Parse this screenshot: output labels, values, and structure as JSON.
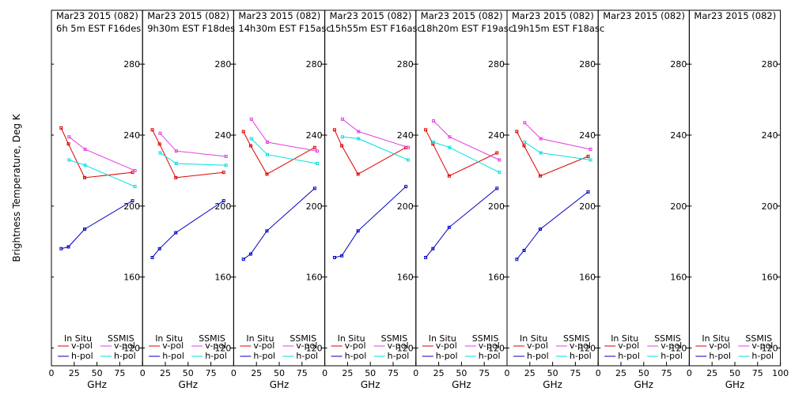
{
  "chart_data": {
    "type": "line",
    "ylabel": "Brightness Temperature, Deg K",
    "xlabel": "GHz",
    "ylim": [
      110,
      297
    ],
    "xlim": [
      0,
      100
    ],
    "yticks": [
      120,
      160,
      200,
      240,
      280
    ],
    "xticks": [
      0,
      25,
      50,
      75
    ],
    "xticks_last_panel": [
      0,
      25,
      50,
      75,
      100
    ],
    "grid": false,
    "colors": {
      "insitu_vpol": "#e00000",
      "insitu_hpol": "#0000c0",
      "ssmis_vpol": "#e040e0",
      "ssmis_hpol": "#00e0e0"
    },
    "legend": {
      "insitu_header": "In Situ",
      "ssmis_header": "SSMIS",
      "vpol": "v-pol",
      "hpol": "h-pol"
    },
    "panels": [
      {
        "title1": "Mar23 2015 (082)",
        "title2": "6h 5m  EST F16des",
        "series": [
          {
            "key": "insitu_vpol",
            "x": [
              10.7,
              18.7,
              36.5,
              89
            ],
            "y": [
              244,
              235,
              216,
              219
            ]
          },
          {
            "key": "insitu_hpol",
            "x": [
              10.7,
              18.7,
              36.5,
              89
            ],
            "y": [
              176,
              177,
              187,
              203
            ]
          },
          {
            "key": "ssmis_vpol",
            "x": [
              19.35,
              37,
              91.655
            ],
            "y": [
              239,
              232,
              220
            ]
          },
          {
            "key": "ssmis_hpol",
            "x": [
              19.35,
              37,
              91.655
            ],
            "y": [
              226,
              223,
              211
            ]
          }
        ]
      },
      {
        "title1": "Mar23 2015 (082)",
        "title2": "9h30m  EST F18des",
        "series": [
          {
            "key": "insitu_vpol",
            "x": [
              10.7,
              18.7,
              36.5,
              89
            ],
            "y": [
              243,
              235,
              216,
              219
            ]
          },
          {
            "key": "insitu_hpol",
            "x": [
              10.7,
              18.7,
              36.5,
              89
            ],
            "y": [
              171,
              176,
              185,
              203
            ]
          },
          {
            "key": "ssmis_vpol",
            "x": [
              19.35,
              37,
              91.655
            ],
            "y": [
              241,
              231,
              228
            ]
          },
          {
            "key": "ssmis_hpol",
            "x": [
              19.35,
              37,
              91.655
            ],
            "y": [
              230,
              224,
              223
            ]
          }
        ]
      },
      {
        "title1": "Mar23 2015 (082)",
        "title2": "14h30m  EST F15asc",
        "series": [
          {
            "key": "insitu_vpol",
            "x": [
              10.7,
              18.7,
              36.5,
              89
            ],
            "y": [
              242,
              234,
              218,
              233
            ]
          },
          {
            "key": "insitu_hpol",
            "x": [
              10.7,
              18.7,
              36.5,
              89
            ],
            "y": [
              170,
              173,
              186,
              210
            ]
          },
          {
            "key": "ssmis_vpol",
            "x": [
              19.35,
              37,
              91.655
            ],
            "y": [
              249,
              236,
              231
            ]
          },
          {
            "key": "ssmis_hpol",
            "x": [
              19.35,
              37,
              91.655
            ],
            "y": [
              238,
              229,
              224
            ]
          }
        ]
      },
      {
        "title1": "Mar23 2015 (082)",
        "title2": "15h55m  EST F16asc",
        "series": [
          {
            "key": "insitu_vpol",
            "x": [
              10.7,
              18.7,
              36.5,
              89
            ],
            "y": [
              243,
              234,
              218,
              233
            ]
          },
          {
            "key": "insitu_hpol",
            "x": [
              10.7,
              18.7,
              36.5,
              89
            ],
            "y": [
              171,
              172,
              186,
              211
            ]
          },
          {
            "key": "ssmis_vpol",
            "x": [
              19.35,
              37,
              91.655
            ],
            "y": [
              249,
              242,
              233
            ]
          },
          {
            "key": "ssmis_hpol",
            "x": [
              19.35,
              37,
              91.655
            ],
            "y": [
              239,
              238,
              226
            ]
          }
        ]
      },
      {
        "title1": "Mar23 2015 (082)",
        "title2": "18h20m  EST F19asc",
        "series": [
          {
            "key": "insitu_vpol",
            "x": [
              10.7,
              18.7,
              36.5,
              89
            ],
            "y": [
              243,
              235,
              217,
              230
            ]
          },
          {
            "key": "insitu_hpol",
            "x": [
              10.7,
              18.7,
              36.5,
              89
            ],
            "y": [
              171,
              176,
              188,
              210
            ]
          },
          {
            "key": "ssmis_vpol",
            "x": [
              19.35,
              37,
              91.655
            ],
            "y": [
              248,
              239,
              226
            ]
          },
          {
            "key": "ssmis_hpol",
            "x": [
              19.35,
              37,
              91.655
            ],
            "y": [
              236,
              233,
              219
            ]
          }
        ]
      },
      {
        "title1": "Mar23 2015 (082)",
        "title2": "19h15m  EST F18asc",
        "series": [
          {
            "key": "insitu_vpol",
            "x": [
              10.7,
              18.7,
              36.5,
              89
            ],
            "y": [
              242,
              234,
              217,
              228
            ]
          },
          {
            "key": "insitu_hpol",
            "x": [
              10.7,
              18.7,
              36.5,
              89
            ],
            "y": [
              170,
              175,
              187,
              208
            ]
          },
          {
            "key": "ssmis_vpol",
            "x": [
              19.35,
              37,
              91.655
            ],
            "y": [
              247,
              238,
              232
            ]
          },
          {
            "key": "ssmis_hpol",
            "x": [
              19.35,
              37,
              91.655
            ],
            "y": [
              236,
              230,
              226
            ]
          }
        ]
      },
      {
        "title1": "Mar23 2015 (082)",
        "title2": "",
        "series": []
      },
      {
        "title1": "Mar23 2015 (082)",
        "title2": "",
        "series": []
      }
    ]
  }
}
